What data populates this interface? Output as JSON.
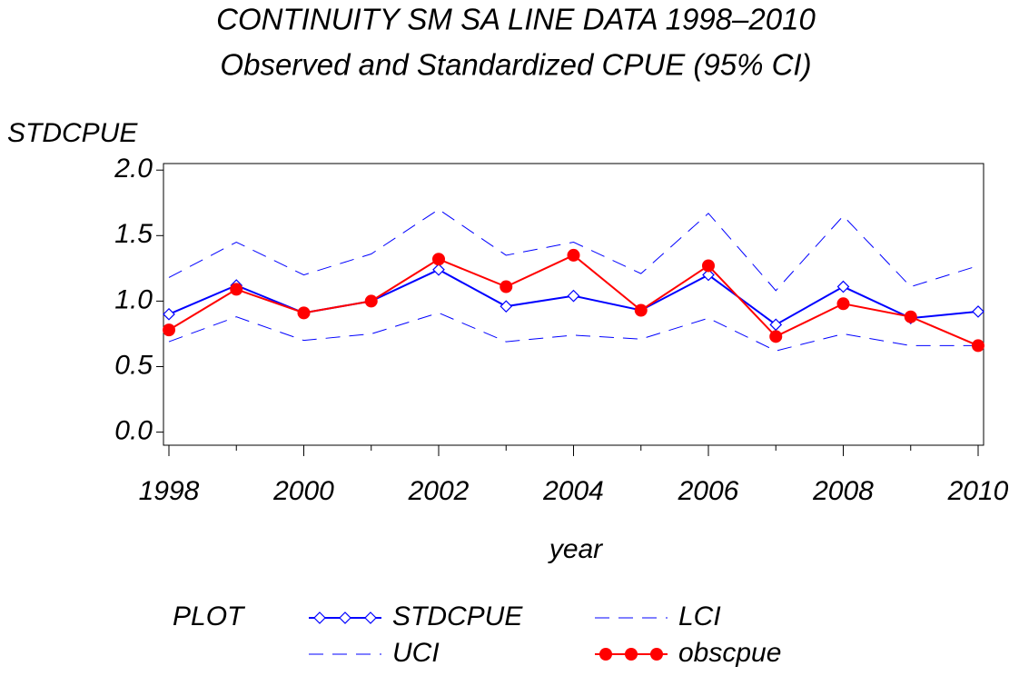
{
  "chart_data": {
    "type": "line",
    "title": "CONTINUITY SM SA LINE DATA 1998–2010",
    "subtitle": "Observed and Standardized CPUE (95% CI)",
    "y_label": "STDCPUE",
    "x_label": "year",
    "legend_title": "PLOT",
    "x": [
      1998,
      1999,
      2000,
      2001,
      2002,
      2003,
      2004,
      2005,
      2006,
      2007,
      2008,
      2009,
      2010
    ],
    "xlim": [
      1998,
      2010
    ],
    "xticks": [
      1998,
      2000,
      2002,
      2004,
      2006,
      2008,
      2010
    ],
    "ylim": [
      -0.1,
      2.05
    ],
    "yticks": [
      {
        "value": 0,
        "label": "0.0"
      },
      {
        "value": 0.5,
        "label": "0.5"
      },
      {
        "value": 1,
        "label": "1.0"
      },
      {
        "value": 1.5,
        "label": "1.5"
      },
      {
        "value": 2,
        "label": "2.0"
      }
    ],
    "series": [
      {
        "name": "STDCPUE",
        "color": "#0000ff",
        "marker": "diamond",
        "dash": false,
        "values": [
          0.9,
          1.12,
          0.91,
          1.0,
          1.24,
          0.96,
          1.04,
          0.93,
          1.2,
          0.82,
          1.11,
          0.87,
          0.92
        ]
      },
      {
        "name": "LCI",
        "color": "#0000ff",
        "marker": "none",
        "dash": true,
        "values": [
          0.69,
          0.88,
          0.7,
          0.75,
          0.91,
          0.69,
          0.74,
          0.71,
          0.87,
          0.62,
          0.75,
          0.66,
          0.66
        ]
      },
      {
        "name": "UCI",
        "color": "#0000ff",
        "marker": "none",
        "dash": true,
        "values": [
          1.18,
          1.45,
          1.2,
          1.36,
          1.7,
          1.35,
          1.45,
          1.21,
          1.67,
          1.08,
          1.65,
          1.11,
          1.27
        ]
      },
      {
        "name": "obscpue",
        "color": "#ff0000",
        "marker": "circle",
        "dash": false,
        "values": [
          0.78,
          1.09,
          0.91,
          1.0,
          1.32,
          1.11,
          1.35,
          0.93,
          1.27,
          0.73,
          0.98,
          0.88,
          0.66
        ]
      }
    ]
  }
}
